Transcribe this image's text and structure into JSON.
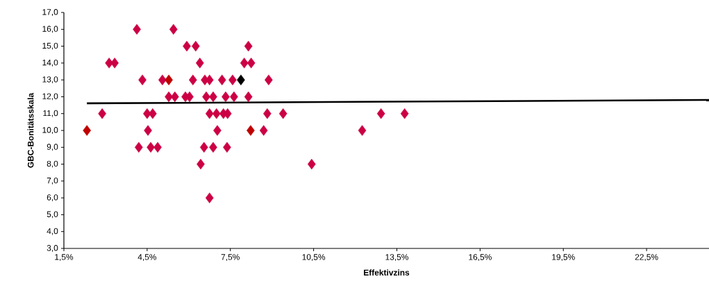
{
  "chart_data": {
    "type": "scatter",
    "xlabel": "Effektivzins",
    "ylabel": "GBC-Bonitätsskala",
    "xlim": [
      1.5,
      24.75
    ],
    "ylim": [
      3,
      17
    ],
    "xticks": [
      {
        "value": 1.5,
        "label": "1,5%"
      },
      {
        "value": 4.5,
        "label": "4,5%"
      },
      {
        "value": 7.5,
        "label": "7,5%"
      },
      {
        "value": 10.5,
        "label": "10,5%"
      },
      {
        "value": 13.5,
        "label": "13,5%"
      },
      {
        "value": 16.5,
        "label": "16,5%"
      },
      {
        "value": 19.5,
        "label": "19,5%"
      },
      {
        "value": 22.5,
        "label": "22,5%"
      }
    ],
    "yticks": [
      {
        "value": 3,
        "label": "3,0"
      },
      {
        "value": 4,
        "label": "4,0"
      },
      {
        "value": 5,
        "label": "5,0"
      },
      {
        "value": 6,
        "label": "6,0"
      },
      {
        "value": 7,
        "label": "7,0"
      },
      {
        "value": 8,
        "label": "8,0"
      },
      {
        "value": 9,
        "label": "9,0"
      },
      {
        "value": 10,
        "label": "10,0"
      },
      {
        "value": 11,
        "label": "11,0"
      },
      {
        "value": 12,
        "label": "12,0"
      },
      {
        "value": 13,
        "label": "13,0"
      },
      {
        "value": 14,
        "label": "14,0"
      },
      {
        "value": 15,
        "label": "15,0"
      },
      {
        "value": 16,
        "label": "16,0"
      },
      {
        "value": 17,
        "label": "17,0"
      }
    ],
    "grid": false,
    "series": [
      {
        "marker": "diamond",
        "x": [
          4.13,
          5.45,
          5.93,
          6.25,
          8.15,
          3.13,
          3.33,
          6.4,
          8.0,
          8.25,
          4.33,
          5.05,
          5.28,
          6.15,
          6.58,
          6.75,
          7.2,
          7.58,
          7.88,
          8.88,
          5.28,
          5.5,
          5.88,
          6.03,
          6.63,
          6.88,
          7.33,
          7.63,
          8.15,
          2.88,
          4.5,
          4.7,
          6.75,
          7.0,
          7.25,
          7.4,
          8.83,
          9.4,
          12.93,
          13.78,
          2.33,
          4.53,
          7.03,
          8.23,
          8.7,
          12.25,
          4.2,
          4.63,
          4.88,
          6.55,
          6.88,
          7.38,
          6.43,
          10.43,
          6.75
        ],
        "values": [
          16,
          16,
          15,
          15,
          15,
          14,
          14,
          14,
          14,
          14,
          13,
          13,
          13,
          13,
          13,
          13,
          13,
          13,
          13,
          13,
          12,
          12,
          12,
          12,
          12,
          12,
          12,
          12,
          12,
          11,
          11,
          11,
          11,
          11,
          11,
          11,
          11,
          11,
          11,
          11,
          10,
          10,
          10,
          10,
          10,
          10,
          9,
          9,
          9,
          9,
          9,
          9,
          8,
          8,
          6
        ],
        "colors": [
          "#cc0044",
          "#cc0044",
          "#cc0044",
          "#cc0044",
          "#cc0044",
          "#cc0044",
          "#cc0044",
          "#cc0044",
          "#cc0044",
          "#cc0044",
          "#cc0044",
          "#cc0044",
          "#c00000",
          "#cc0044",
          "#cc0044",
          "#cc0044",
          "#cc0044",
          "#cc0044",
          "#000000",
          "#cc0044",
          "#cc0044",
          "#cc0044",
          "#cc0044",
          "#cc0044",
          "#cc0044",
          "#cc0044",
          "#cc0044",
          "#cc0044",
          "#cc0044",
          "#cc0044",
          "#cc0044",
          "#cc0044",
          "#cc0044",
          "#cc0044",
          "#cc0044",
          "#cc0044",
          "#cc0044",
          "#cc0044",
          "#cc0044",
          "#cc0044",
          "#c00000",
          "#cc0044",
          "#cc0044",
          "#c00000",
          "#cc0044",
          "#cc0044",
          "#cc0044",
          "#cc0044",
          "#cc0044",
          "#cc0044",
          "#cc0044",
          "#cc0044",
          "#cc0044",
          "#cc0044",
          "#cc0044"
        ]
      },
      {
        "type": "line",
        "color": "#000000",
        "marker": "none",
        "line_style": "solid",
        "x": [
          2.33,
          24.75
        ],
        "values": [
          11.61,
          11.81
        ]
      }
    ]
  }
}
